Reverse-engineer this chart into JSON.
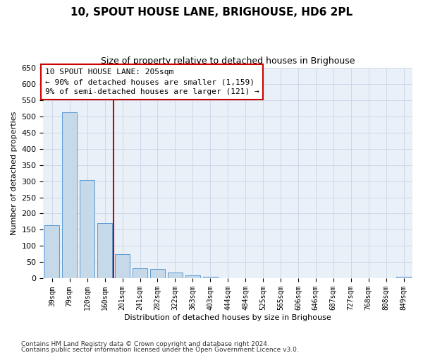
{
  "title": "10, SPOUT HOUSE LANE, BRIGHOUSE, HD6 2PL",
  "subtitle": "Size of property relative to detached houses in Brighouse",
  "xlabel": "Distribution of detached houses by size in Brighouse",
  "ylabel": "Number of detached properties",
  "bar_color": "#c5d9e8",
  "bar_edge_color": "#5b9bd5",
  "grid_color": "#ced8ea",
  "bg_color": "#eaf0f8",
  "annotation_box_color": "#cc0000",
  "vline_color": "#cc0000",
  "categories": [
    "39sqm",
    "79sqm",
    "120sqm",
    "160sqm",
    "201sqm",
    "241sqm",
    "282sqm",
    "322sqm",
    "363sqm",
    "403sqm",
    "444sqm",
    "484sqm",
    "525sqm",
    "565sqm",
    "606sqm",
    "646sqm",
    "687sqm",
    "727sqm",
    "768sqm",
    "808sqm",
    "849sqm"
  ],
  "values": [
    165,
    512,
    304,
    170,
    76,
    31,
    30,
    19,
    9,
    5,
    0,
    0,
    0,
    0,
    0,
    0,
    0,
    0,
    0,
    0,
    5
  ],
  "ylim": [
    0,
    650
  ],
  "yticks": [
    0,
    50,
    100,
    150,
    200,
    250,
    300,
    350,
    400,
    450,
    500,
    550,
    600,
    650
  ],
  "vline_position": 3.5,
  "annotation_text": "10 SPOUT HOUSE LANE: 205sqm\n← 90% of detached houses are smaller (1,159)\n9% of semi-detached houses are larger (121) →",
  "footnote1": "Contains HM Land Registry data © Crown copyright and database right 2024.",
  "footnote2": "Contains public sector information licensed under the Open Government Licence v3.0."
}
